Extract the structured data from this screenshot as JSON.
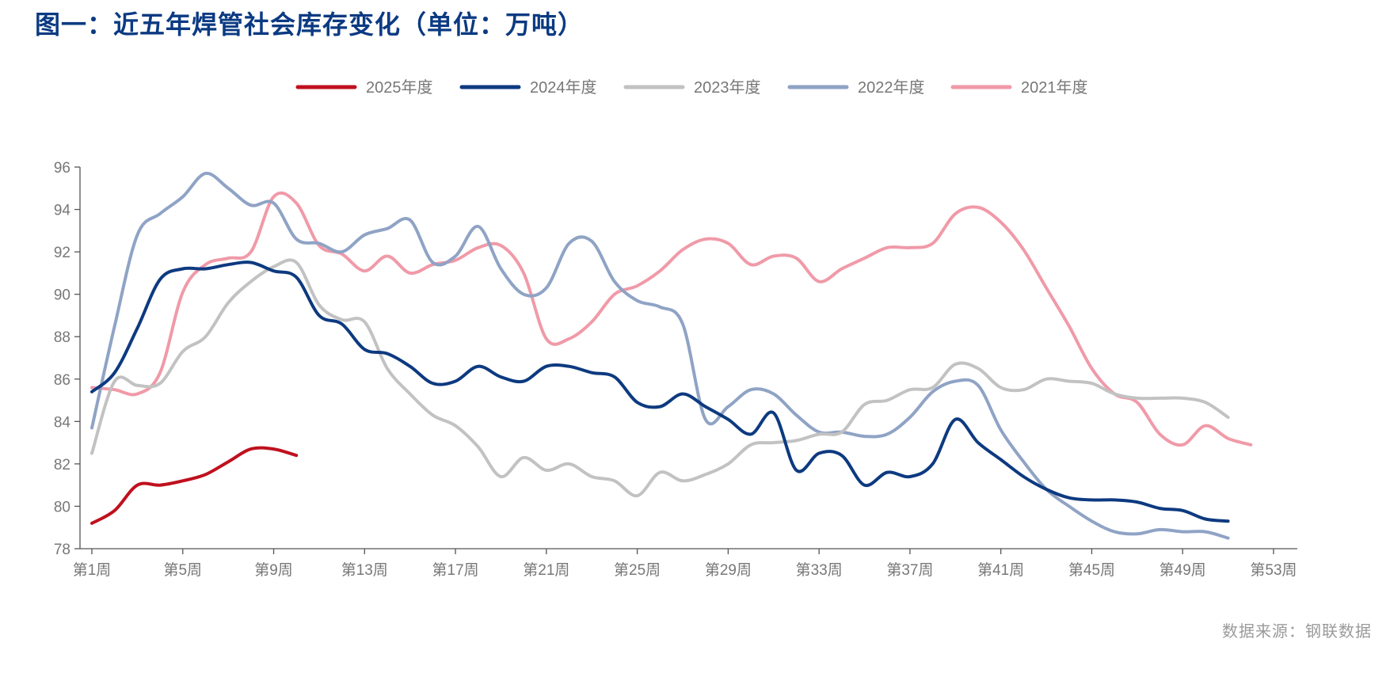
{
  "title": "图一：近五年焊管社会库存变化（单位：万吨）",
  "source": "数据来源：钢联数据",
  "chart_data": {
    "type": "line",
    "ylim": [
      78,
      96
    ],
    "yticks": [
      78,
      80,
      82,
      84,
      86,
      88,
      90,
      92,
      94,
      96
    ],
    "xlim": [
      1,
      53
    ],
    "xticks": [
      {
        "week": 1,
        "label": "第1周"
      },
      {
        "week": 5,
        "label": "第5周"
      },
      {
        "week": 9,
        "label": "第9周"
      },
      {
        "week": 13,
        "label": "第13周"
      },
      {
        "week": 17,
        "label": "第17周"
      },
      {
        "week": 21,
        "label": "第21周"
      },
      {
        "week": 25,
        "label": "第25周"
      },
      {
        "week": 29,
        "label": "第29周"
      },
      {
        "week": 33,
        "label": "第33周"
      },
      {
        "week": 37,
        "label": "第37周"
      },
      {
        "week": 41,
        "label": "第41周"
      },
      {
        "week": 45,
        "label": "第45周"
      },
      {
        "week": 49,
        "label": "第49周"
      },
      {
        "week": 53,
        "label": "第53周"
      }
    ],
    "legend_position": "top-center",
    "series": [
      {
        "name": "2025年度",
        "color": "#c0101e",
        "values": [
          79.2,
          79.8,
          81.0,
          81.0,
          81.2,
          81.5,
          82.1,
          82.7,
          82.7,
          82.4
        ]
      },
      {
        "name": "2024年度",
        "color": "#0d3a80",
        "values": [
          85.4,
          86.3,
          88.4,
          90.7,
          91.2,
          91.2,
          91.4,
          91.5,
          91.1,
          90.8,
          89.0,
          88.6,
          87.4,
          87.2,
          86.6,
          85.8,
          85.9,
          86.6,
          86.1,
          85.9,
          86.6,
          86.6,
          86.3,
          86.1,
          84.9,
          84.7,
          85.3,
          84.7,
          84.1,
          83.4,
          84.4,
          81.7,
          82.5,
          82.4,
          81.0,
          81.6,
          81.4,
          82.0,
          84.1,
          83.0,
          82.2,
          81.4,
          80.8,
          80.4,
          80.3,
          80.3,
          80.2,
          79.9,
          79.8,
          79.4,
          79.3
        ]
      },
      {
        "name": "2023年度",
        "color": "#c2c2c2",
        "values": [
          82.5,
          85.9,
          85.7,
          85.8,
          87.3,
          88.0,
          89.6,
          90.6,
          91.3,
          91.5,
          89.5,
          88.8,
          88.7,
          86.5,
          85.3,
          84.3,
          83.8,
          82.8,
          81.4,
          82.3,
          81.7,
          82.0,
          81.4,
          81.2,
          80.5,
          81.6,
          81.2,
          81.5,
          82.0,
          82.9,
          83.0,
          83.1,
          83.4,
          83.5,
          84.8,
          85.0,
          85.5,
          85.6,
          86.7,
          86.5,
          85.6,
          85.5,
          86.0,
          85.9,
          85.8,
          85.3,
          85.1,
          85.1,
          85.1,
          84.9,
          84.2
        ]
      },
      {
        "name": "2022年度",
        "color": "#8fa3c5",
        "values": [
          83.7,
          88.5,
          92.8,
          93.8,
          94.6,
          95.7,
          95.0,
          94.2,
          94.3,
          92.6,
          92.4,
          92.0,
          92.8,
          93.1,
          93.5,
          91.5,
          91.8,
          93.2,
          91.2,
          90.0,
          90.3,
          92.4,
          92.5,
          90.6,
          89.7,
          89.4,
          88.6,
          84.1,
          84.7,
          85.5,
          85.3,
          84.3,
          83.5,
          83.5,
          83.3,
          83.4,
          84.2,
          85.4,
          85.9,
          85.7,
          83.6,
          82.1,
          80.8,
          80.0,
          79.3,
          78.8,
          78.7,
          78.9,
          78.8,
          78.8,
          78.5
        ]
      },
      {
        "name": "2021年度",
        "color": "#f09aa8",
        "values": [
          85.6,
          85.5,
          85.3,
          86.3,
          90.1,
          91.4,
          91.7,
          92.0,
          94.6,
          94.3,
          92.3,
          91.9,
          91.1,
          91.8,
          91.0,
          91.4,
          91.6,
          92.2,
          92.3,
          91.0,
          87.9,
          87.9,
          88.7,
          90.0,
          90.4,
          91.1,
          92.1,
          92.6,
          92.4,
          91.4,
          91.8,
          91.7,
          90.6,
          91.2,
          91.7,
          92.2,
          92.2,
          92.4,
          93.8,
          94.1,
          93.4,
          92.1,
          90.3,
          88.5,
          86.5,
          85.3,
          84.9,
          83.4,
          82.9,
          83.8,
          83.2,
          82.9
        ]
      }
    ]
  }
}
